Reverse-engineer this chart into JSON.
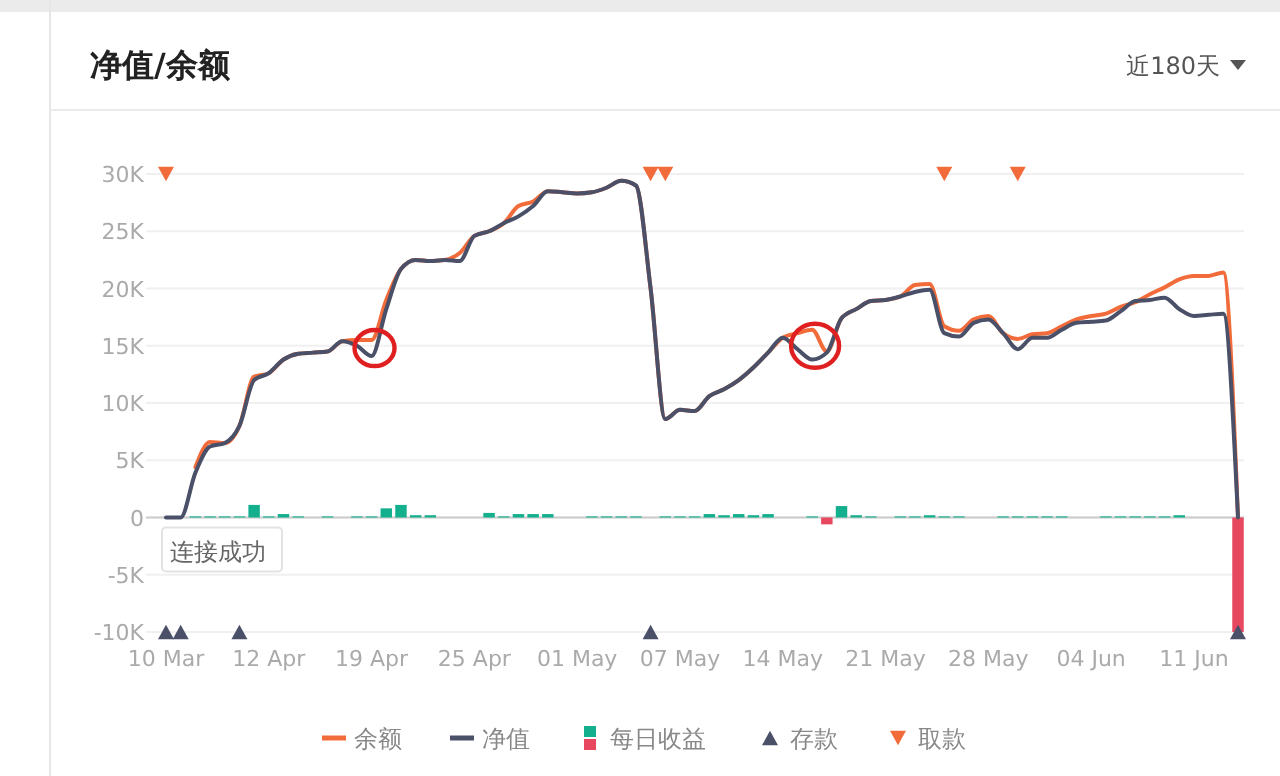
{
  "chart_data": {
    "type": "line",
    "title": "净值/余额",
    "subtitle": "近180天",
    "categories": [
      "10 Mar",
      null,
      null,
      null,
      null,
      null,
      null,
      "12 Apr",
      null,
      null,
      null,
      null,
      null,
      null,
      "19 Apr",
      null,
      null,
      null,
      null,
      null,
      null,
      "25 Apr",
      null,
      null,
      null,
      null,
      null,
      null,
      "01 May",
      null,
      null,
      null,
      null,
      null,
      null,
      "07 May",
      null,
      null,
      null,
      null,
      null,
      null,
      "14 May",
      null,
      null,
      null,
      null,
      null,
      null,
      "21 May",
      null,
      null,
      null,
      null,
      null,
      null,
      "28 May",
      null,
      null,
      null,
      null,
      null,
      null,
      "04 Jun",
      null,
      null,
      null,
      null,
      null,
      null,
      "11 Jun",
      null,
      null,
      null
    ],
    "ylim": [
      -10000,
      30000
    ],
    "yticks": [
      {
        "value": -10000,
        "label": "-10K"
      },
      {
        "value": -5000,
        "label": "-5K"
      },
      0,
      {
        "value": 5000,
        "label": "5K"
      },
      {
        "value": 10000,
        "label": "10K"
      },
      {
        "value": 15000,
        "label": "15K"
      },
      {
        "value": 20000,
        "label": "20K"
      },
      {
        "value": 25000,
        "label": "25K"
      },
      {
        "value": 30000,
        "label": "30K"
      }
    ],
    "grid": "y",
    "legend": "bottom",
    "annotations": [
      {
        "text": "连接成功",
        "x": "10 Mar",
        "y": 0
      }
    ],
    "series": [
      {
        "name": "余额",
        "color": "#f26b3a",
        "values": [
          null,
          null,
          4400,
          6600,
          6500,
          8000,
          12300,
          12600,
          13800,
          14300,
          14400,
          14500,
          15400,
          15500,
          15500,
          19000,
          21700,
          22500,
          22400,
          22500,
          23100,
          24600,
          25000,
          25700,
          27200,
          27600,
          28500,
          28400,
          28300,
          28400,
          28800,
          29400,
          29000,
          20000,
          8600,
          9400,
          9300,
          10600,
          11200,
          12000,
          13100,
          14400,
          15700,
          16100,
          16400,
          14500,
          17400,
          18200,
          18900,
          19000,
          19300,
          20300,
          20400,
          16700,
          16300,
          17300,
          17600,
          16100,
          15600,
          16000,
          16100,
          16700,
          17300,
          17600,
          17800,
          18400,
          18800,
          19500,
          20100,
          20800,
          21100,
          21100,
          21400,
          0
        ]
      },
      {
        "name": "净值",
        "color": "#4a5068",
        "values": [
          0,
          0,
          3900,
          6200,
          6500,
          8000,
          12000,
          12600,
          13800,
          14300,
          14400,
          14500,
          15400,
          15000,
          14100,
          18200,
          21700,
          22500,
          22400,
          22500,
          22400,
          24600,
          25000,
          25700,
          26300,
          27200,
          28500,
          28400,
          28300,
          28400,
          28800,
          29400,
          29000,
          20000,
          8600,
          9400,
          9300,
          10600,
          11200,
          12000,
          13100,
          14400,
          15700,
          14700,
          13800,
          14400,
          17400,
          18200,
          18900,
          19000,
          19300,
          19700,
          19900,
          16100,
          15800,
          17000,
          17300,
          16100,
          14700,
          15700,
          15700,
          16400,
          17000,
          17100,
          17200,
          18000,
          18900,
          19000,
          19200,
          18200,
          17600,
          17700,
          17800,
          0
        ]
      },
      {
        "name": "每日收益",
        "type": "bar",
        "color": "#14b08e",
        "values": [
          0,
          null,
          100,
          100,
          100,
          100,
          1100,
          100,
          300,
          100,
          0,
          100,
          0,
          100,
          100,
          800,
          1100,
          200,
          200,
          0,
          0,
          0,
          400,
          100,
          300,
          300,
          300,
          0,
          0,
          100,
          100,
          100,
          100,
          0,
          100,
          100,
          100,
          300,
          200,
          300,
          200,
          300,
          0,
          0,
          100,
          -600,
          1000,
          200,
          100,
          0,
          100,
          100,
          200,
          100,
          100,
          0,
          0,
          100,
          100,
          100,
          100,
          100,
          0,
          0,
          100,
          100,
          100,
          100,
          100,
          200,
          0,
          0,
          0,
          -10000
        ],
        "colors": [
          "#14b08e",
          "#14b08e",
          "#14b08e",
          "#14b08e",
          "#14b08e",
          "#14b08e",
          "#14b08e",
          "#14b08e",
          "#14b08e",
          "#14b08e",
          "#14b08e",
          "#14b08e",
          "#14b08e",
          "#14b08e",
          "#14b08e",
          "#14b08e",
          "#14b08e",
          "#14b08e",
          "#14b08e",
          "#14b08e",
          "#14b08e",
          "#14b08e",
          "#14b08e",
          "#14b08e",
          "#14b08e",
          "#14b08e",
          "#14b08e",
          "#14b08e",
          "#14b08e",
          "#14b08e",
          "#14b08e",
          "#14b08e",
          "#14b08e",
          "#14b08e",
          "#14b08e",
          "#14b08e",
          "#14b08e",
          "#14b08e",
          "#14b08e",
          "#14b08e",
          "#14b08e",
          "#14b08e",
          "#14b08e",
          "#14b08e",
          "#14b08e",
          "#e8485f",
          "#14b08e",
          "#14b08e",
          "#14b08e",
          "#14b08e",
          "#14b08e",
          "#14b08e",
          "#14b08e",
          "#14b08e",
          "#14b08e",
          "#14b08e",
          "#14b08e",
          "#14b08e",
          "#14b08e",
          "#14b08e",
          "#14b08e",
          "#14b08e",
          "#14b08e",
          "#14b08e",
          "#14b08e",
          "#14b08e",
          "#14b08e",
          "#14b08e",
          "#14b08e",
          "#14b08e",
          "#14b08e",
          "#14b08e",
          "#14b08e",
          "#e8485f"
        ]
      },
      {
        "name": "存款",
        "type": "scatter",
        "marker": "triangle",
        "color": "#4a5068",
        "values": [
          -10000,
          -10000,
          null,
          null,
          null,
          -10000,
          null,
          null,
          null,
          null,
          null,
          null,
          null,
          null,
          null,
          null,
          null,
          null,
          null,
          null,
          null,
          null,
          null,
          null,
          null,
          null,
          null,
          null,
          null,
          null,
          null,
          null,
          null,
          -10000,
          null,
          null,
          null,
          null,
          null,
          null,
          null,
          null,
          null,
          null,
          null,
          null,
          null,
          null,
          null,
          null,
          null,
          null,
          null,
          null,
          null,
          null,
          null,
          null,
          null,
          null,
          null,
          null,
          null,
          null,
          null,
          null,
          null,
          null,
          null,
          null,
          null,
          null,
          null,
          -10000
        ]
      },
      {
        "name": "取款",
        "type": "scatter",
        "marker": "triangle-down",
        "color": "#f26b3a",
        "values": [
          30000,
          null,
          null,
          null,
          null,
          null,
          null,
          null,
          null,
          null,
          null,
          null,
          null,
          null,
          null,
          null,
          null,
          null,
          null,
          null,
          null,
          null,
          null,
          null,
          null,
          null,
          null,
          null,
          null,
          null,
          null,
          null,
          null,
          30000,
          30000,
          null,
          null,
          null,
          null,
          null,
          null,
          null,
          null,
          null,
          null,
          null,
          null,
          null,
          null,
          null,
          null,
          null,
          null,
          30000,
          null,
          null,
          null,
          null,
          30000,
          null,
          null,
          null,
          null,
          null,
          null,
          null,
          null,
          null,
          null,
          null,
          null,
          null,
          null,
          null
        ]
      }
    ]
  }
}
